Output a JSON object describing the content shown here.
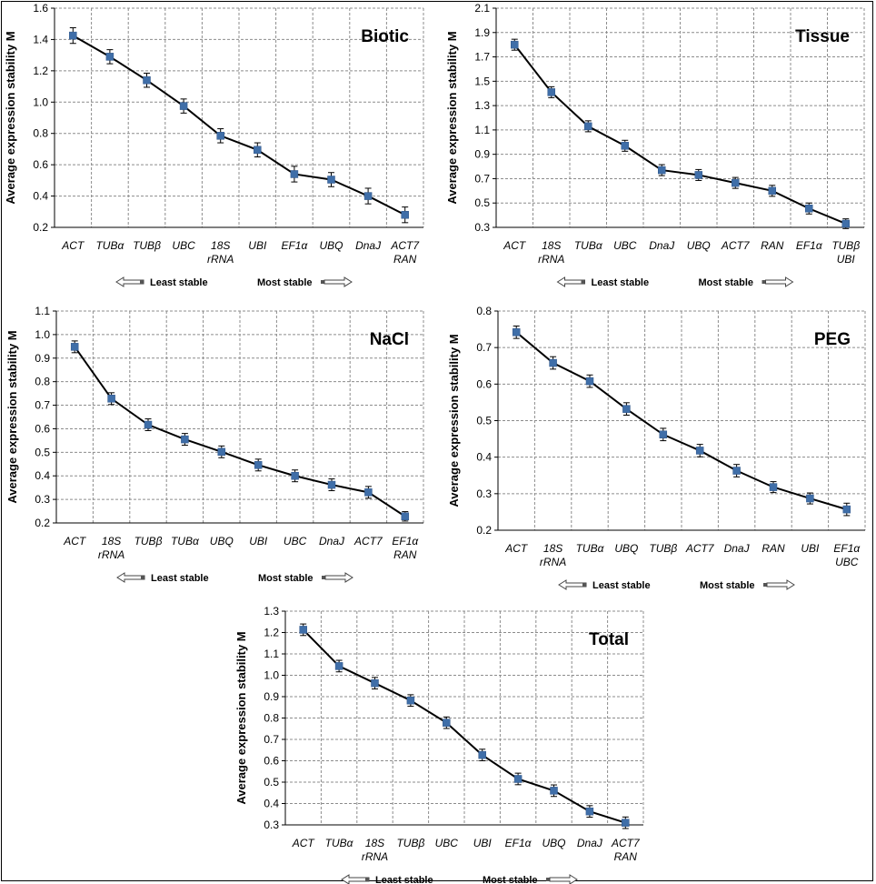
{
  "figure": {
    "y_axis_label": "Average expression stability M",
    "legend": {
      "least": "Least stable",
      "most": "Most stable"
    }
  },
  "colors": {
    "marker": "#3f6ea8",
    "line": "#000000",
    "grid": "#8c8c8c",
    "text": "#000000"
  },
  "chart_data": [
    {
      "type": "line",
      "title": "Biotic",
      "ylabel": "Average expression stability M",
      "ylim": [
        0.2,
        1.6
      ],
      "yticks": [
        "0.2",
        "0.4",
        "0.6",
        "0.8",
        "1.0",
        "1.2",
        "1.4",
        "1.6"
      ],
      "categories": [
        [
          "ACT"
        ],
        [
          "TUBα"
        ],
        [
          "TUBβ"
        ],
        [
          "UBC"
        ],
        [
          "18S",
          "rRNA"
        ],
        [
          "UBI"
        ],
        [
          "EF1α"
        ],
        [
          "UBQ"
        ],
        [
          "DnaJ"
        ],
        [
          "ACT7",
          "RAN"
        ]
      ],
      "values": [
        1.425,
        1.29,
        1.14,
        0.975,
        0.785,
        0.695,
        0.54,
        0.505,
        0.4,
        0.28
      ],
      "errors": [
        0.05,
        0.045,
        0.045,
        0.045,
        0.045,
        0.045,
        0.05,
        0.045,
        0.05,
        0.05
      ],
      "grid": true
    },
    {
      "type": "line",
      "title": "Tissue",
      "ylabel": "Average expression stability M",
      "ylim": [
        0.3,
        2.1
      ],
      "yticks": [
        "0.3",
        "0.5",
        "0.7",
        "0.9",
        "1.1",
        "1.3",
        "1.5",
        "1.7",
        "1.9",
        "2.1"
      ],
      "categories": [
        [
          "ACT"
        ],
        [
          "18S",
          "rRNA"
        ],
        [
          "TUBα"
        ],
        [
          "UBC"
        ],
        [
          "DnaJ"
        ],
        [
          "UBQ"
        ],
        [
          "ACT7"
        ],
        [
          "RAN"
        ],
        [
          "EF1α"
        ],
        [
          "TUBβ",
          "UBI"
        ]
      ],
      "values": [
        1.8,
        1.41,
        1.13,
        0.97,
        0.77,
        0.73,
        0.665,
        0.6,
        0.455,
        0.33
      ],
      "errors": [
        0.045,
        0.045,
        0.045,
        0.045,
        0.045,
        0.045,
        0.045,
        0.045,
        0.045,
        0.04
      ],
      "grid": true
    },
    {
      "type": "line",
      "title": "NaCl",
      "ylabel": "Average expression stability M",
      "ylim": [
        0.2,
        1.1
      ],
      "yticks": [
        "0.2",
        "0.3",
        "0.4",
        "0.5",
        "0.6",
        "0.7",
        "0.8",
        "0.9",
        "1.0",
        "1.1"
      ],
      "categories": [
        [
          "ACT"
        ],
        [
          "18S",
          "rRNA"
        ],
        [
          "TUBβ"
        ],
        [
          "TUBα"
        ],
        [
          "UBQ"
        ],
        [
          "UBI"
        ],
        [
          "UBC"
        ],
        [
          "DnaJ"
        ],
        [
          "ACT7"
        ],
        [
          "EF1α",
          "RAN"
        ]
      ],
      "values": [
        0.948,
        0.728,
        0.617,
        0.555,
        0.502,
        0.446,
        0.4,
        0.362,
        0.33,
        0.228
      ],
      "errors": [
        0.025,
        0.025,
        0.025,
        0.025,
        0.025,
        0.025,
        0.025,
        0.025,
        0.025,
        0.02
      ],
      "grid": true
    },
    {
      "type": "line",
      "title": "PEG",
      "ylabel": "Average expression stability M",
      "ylim": [
        0.2,
        0.8
      ],
      "yticks": [
        "0.2",
        "0.3",
        "0.4",
        "0.5",
        "0.6",
        "0.7",
        "0.8"
      ],
      "categories": [
        [
          "ACT"
        ],
        [
          "18S",
          "rRNA"
        ],
        [
          "TUBα"
        ],
        [
          "UBQ"
        ],
        [
          "TUBβ"
        ],
        [
          "ACT7"
        ],
        [
          "DnaJ"
        ],
        [
          "RAN"
        ],
        [
          "UBI"
        ],
        [
          "EF1α",
          "UBC"
        ]
      ],
      "values": [
        0.742,
        0.658,
        0.608,
        0.532,
        0.462,
        0.418,
        0.363,
        0.318,
        0.287,
        0.257
      ],
      "errors": [
        0.017,
        0.017,
        0.017,
        0.017,
        0.017,
        0.017,
        0.017,
        0.015,
        0.015,
        0.017
      ],
      "grid": true
    },
    {
      "type": "line",
      "title": "Total",
      "ylabel": "Average expression stability M",
      "ylim": [
        0.3,
        1.3
      ],
      "yticks": [
        "0.3",
        "0.4",
        "0.5",
        "0.6",
        "0.7",
        "0.8",
        "0.9",
        "1.0",
        "1.1",
        "1.2",
        "1.3"
      ],
      "categories": [
        [
          "ACT"
        ],
        [
          "TUBα"
        ],
        [
          "18S",
          "rRNA"
        ],
        [
          "TUBβ"
        ],
        [
          "UBC"
        ],
        [
          "UBI"
        ],
        [
          "EF1α"
        ],
        [
          "UBQ"
        ],
        [
          "DnaJ"
        ],
        [
          "ACT7",
          "RAN"
        ]
      ],
      "values": [
        1.213,
        1.043,
        0.963,
        0.882,
        0.778,
        0.627,
        0.515,
        0.46,
        0.363,
        0.31
      ],
      "errors": [
        0.027,
        0.027,
        0.027,
        0.027,
        0.027,
        0.027,
        0.027,
        0.027,
        0.027,
        0.027
      ],
      "grid": true
    }
  ]
}
